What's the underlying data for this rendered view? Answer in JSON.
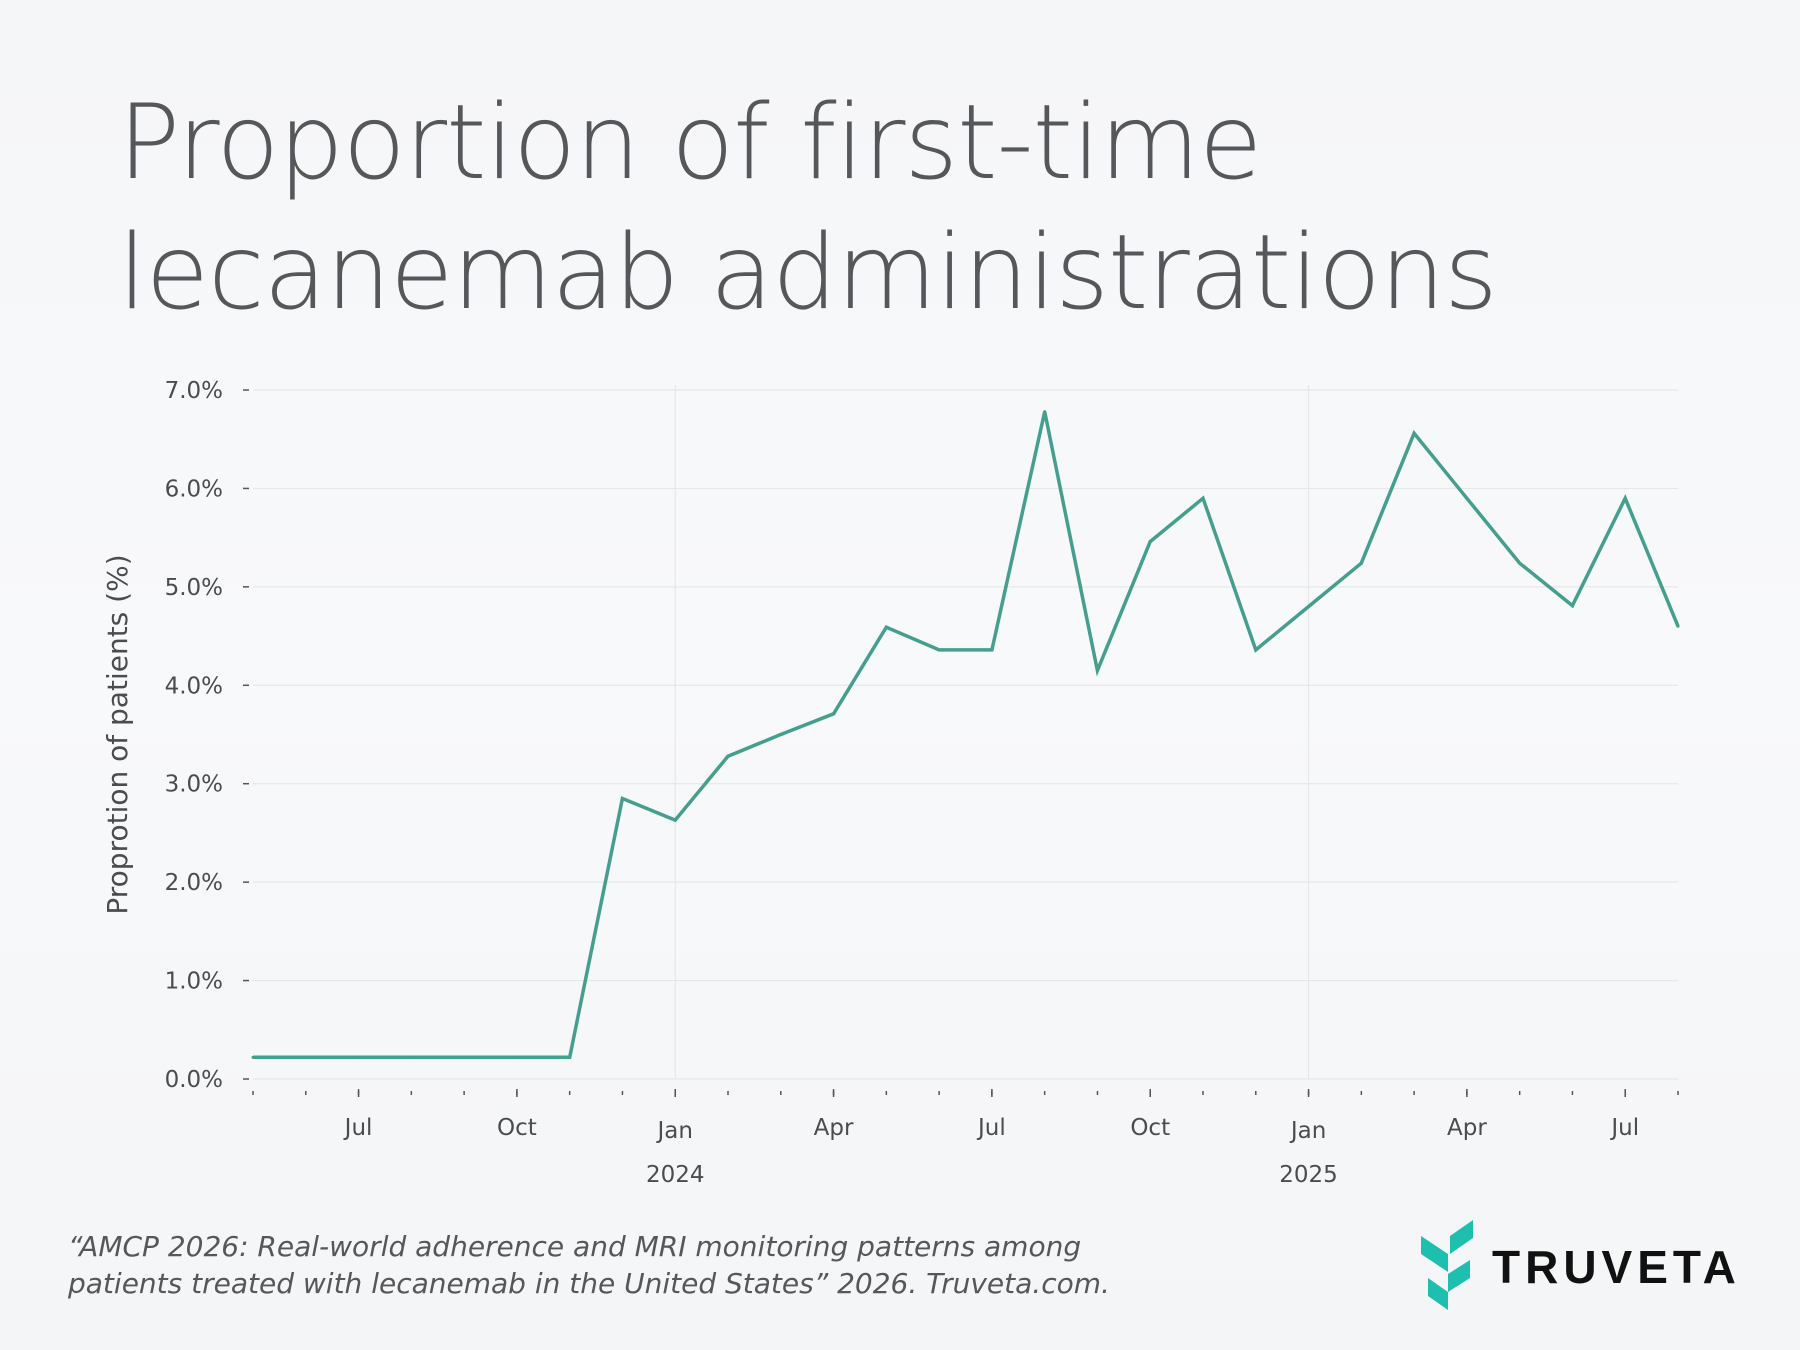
{
  "title": [
    "Proportion of first-time",
    "lecanemab administrations"
  ],
  "footer": [
    "“AMCP 2026: Real-world adherence and MRI monitoring patterns among",
    "patients treated with lecanemab in the United States” 2026. Truveta.com."
  ],
  "logo": {
    "text": "TRUVETA",
    "color": "#1fbfb0"
  },
  "chart_data": {
    "type": "line",
    "title": "",
    "xlabel": "",
    "ylabel": "Proprotion of patients (%)",
    "ylim": [
      0,
      7
    ],
    "yticks": [
      "0.0%",
      "1.0%",
      "2.0%",
      "3.0%",
      "4.0%",
      "5.0%",
      "6.0%",
      "7.0%"
    ],
    "xrange": [
      "2023-05",
      "2025-08"
    ],
    "xtick_labels": [
      {
        "month": "2023-07",
        "label": "Jul"
      },
      {
        "month": "2023-10",
        "label": "Oct"
      },
      {
        "month": "2024-01",
        "label": "Jan",
        "year": "2024"
      },
      {
        "month": "2024-04",
        "label": "Apr"
      },
      {
        "month": "2024-07",
        "label": "Jul"
      },
      {
        "month": "2024-10",
        "label": "Oct"
      },
      {
        "month": "2025-01",
        "label": "Jan",
        "year": "2025"
      },
      {
        "month": "2025-04",
        "label": "Apr"
      },
      {
        "month": "2025-07",
        "label": "Jul"
      }
    ],
    "grid": true,
    "line_color": "#459e8e",
    "series": [
      {
        "x": [
          "2023-05",
          "2023-06",
          "2023-07",
          "2023-08",
          "2023-09",
          "2023-10",
          "2023-11",
          "2023-12",
          "2024-01",
          "2024-02",
          "2024-03",
          "2024-04",
          "2024-05",
          "2024-06",
          "2024-07",
          "2024-08",
          "2024-09",
          "2024-10",
          "2024-11",
          "2024-12",
          "2025-01",
          "2025-02",
          "2025-03",
          "2025-04",
          "2025-05",
          "2025-06",
          "2025-07",
          "2025-08"
        ],
        "values": [
          0.22,
          0.22,
          0.22,
          0.22,
          0.22,
          0.22,
          0.22,
          2.85,
          2.63,
          3.28,
          3.5,
          3.71,
          4.59,
          4.36,
          4.36,
          6.78,
          4.15,
          5.46,
          5.9,
          4.36,
          4.8,
          5.24,
          6.56,
          5.9,
          5.24,
          4.81,
          5.9,
          4.6
        ]
      }
    ]
  }
}
